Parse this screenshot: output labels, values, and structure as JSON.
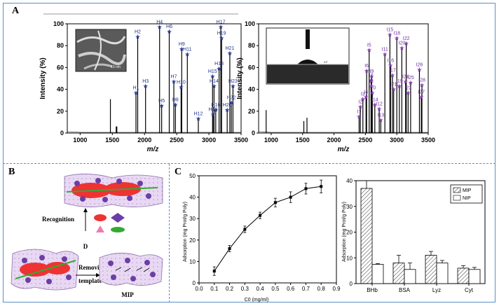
{
  "panels": {
    "a": "A",
    "b": "B",
    "c": "C"
  },
  "colors": {
    "border": "#5a8fc8",
    "bar_mip": "#ffffff",
    "bar_nip": "#ffffff",
    "star1": "#2a3c9a",
    "star2": "#8a3fb5"
  },
  "chart_data": [
    {
      "type": "bar",
      "title": "",
      "xlabel": "m/z",
      "ylabel": "Intensity (%)",
      "xlim": [
        800,
        3500
      ],
      "ylim": [
        0,
        100
      ],
      "xticks": [
        "1000",
        "1500",
        "2000",
        "2500",
        "3000",
        "3500"
      ],
      "yticks": [
        "0",
        "20",
        "40",
        "60",
        "80",
        "100"
      ],
      "inset_label": "10 nm",
      "peaks": [
        {
          "label": "H1",
          "x": 1867,
          "y": 37
        },
        {
          "label": "H2",
          "x": 1894,
          "y": 88
        },
        {
          "label": "H3",
          "x": 2016,
          "y": 43
        },
        {
          "label": "H4",
          "x": 2234,
          "y": 97
        },
        {
          "label": "H5",
          "x": 2266,
          "y": 25
        },
        {
          "label": "H6",
          "x": 2384,
          "y": 93
        },
        {
          "label": "H7",
          "x": 2455,
          "y": 47
        },
        {
          "label": "H8",
          "x": 2480,
          "y": 26
        },
        {
          "label": "H9",
          "x": 2578,
          "y": 77
        },
        {
          "label": "H10",
          "x": 2568,
          "y": 42
        },
        {
          "label": "H11",
          "x": 2665,
          "y": 72
        },
        {
          "label": "H12",
          "x": 2836,
          "y": 13
        },
        {
          "label": "H13",
          "x": 3064,
          "y": 17
        },
        {
          "label": "H14",
          "x": 3080,
          "y": 43
        },
        {
          "label": "H15",
          "x": 3057,
          "y": 52
        },
        {
          "label": "H16",
          "x": 3106,
          "y": 21
        },
        {
          "label": "H17",
          "x": 3185,
          "y": 97
        },
        {
          "label": "H18",
          "x": 3158,
          "y": 59
        },
        {
          "label": "H19",
          "x": 3197,
          "y": 87
        },
        {
          "label": "H20",
          "x": 3284,
          "y": 21
        },
        {
          "label": "H21",
          "x": 3325,
          "y": 73
        },
        {
          "label": "H22",
          "x": 3348,
          "y": 28
        },
        {
          "label": "H23",
          "x": 3374,
          "y": 43
        }
      ],
      "unlabeled_peaks": [
        {
          "x": 1470,
          "y": 31
        },
        {
          "x": 1570,
          "y": 6
        },
        {
          "x": 1560,
          "y": 6
        }
      ]
    },
    {
      "type": "bar",
      "title": "",
      "xlabel": "m/z",
      "ylabel": "Intensity (%)",
      "xlim": [
        800,
        3500
      ],
      "ylim": [
        0,
        100
      ],
      "xticks": [
        "1000",
        "1500",
        "2000",
        "2500",
        "3000",
        "3500"
      ],
      "yticks": [
        "0",
        "20",
        "40",
        "60",
        "80",
        "100"
      ],
      "inset_label": "93°",
      "peaks": [
        {
          "label": "I1",
          "x": 2400,
          "y": 15
        },
        {
          "label": "I2",
          "x": 2420,
          "y": 24
        },
        {
          "label": "I3",
          "x": 2460,
          "y": 31
        },
        {
          "label": "I4",
          "x": 2510,
          "y": 33
        },
        {
          "label": "I5",
          "x": 2560,
          "y": 76
        },
        {
          "label": "I6",
          "x": 2520,
          "y": 57
        },
        {
          "label": "I7",
          "x": 2590,
          "y": 48
        },
        {
          "label": "I8",
          "x": 2595,
          "y": 43
        },
        {
          "label": "I9",
          "x": 2600,
          "y": 52
        },
        {
          "label": "I10",
          "x": 2610,
          "y": 37
        },
        {
          "label": "I11",
          "x": 2810,
          "y": 72
        },
        {
          "label": "I12",
          "x": 2720,
          "y": 22
        },
        {
          "label": "I13",
          "x": 2745,
          "y": 12
        },
        {
          "label": "I14",
          "x": 2650,
          "y": 26
        },
        {
          "label": "I15",
          "x": 2890,
          "y": 90
        },
        {
          "label": "I16",
          "x": 2900,
          "y": 62
        },
        {
          "label": "I17",
          "x": 2930,
          "y": 53
        },
        {
          "label": "I18",
          "x": 3000,
          "y": 87
        },
        {
          "label": "I19",
          "x": 3040,
          "y": 43
        },
        {
          "label": "I20",
          "x": 3080,
          "y": 78
        },
        {
          "label": "I21",
          "x": 2950,
          "y": 40
        },
        {
          "label": "I22",
          "x": 3150,
          "y": 82
        },
        {
          "label": "I23",
          "x": 3180,
          "y": 37
        },
        {
          "label": "I24",
          "x": 3140,
          "y": 47
        },
        {
          "label": "I25",
          "x": 3220,
          "y": 46
        },
        {
          "label": "I26",
          "x": 3360,
          "y": 58
        },
        {
          "label": "I27",
          "x": 3390,
          "y": 33
        },
        {
          "label": "I28",
          "x": 3400,
          "y": 44
        }
      ],
      "unlabeled_peaks": [
        {
          "x": 920,
          "y": 21
        },
        {
          "x": 1520,
          "y": 11
        },
        {
          "x": 1570,
          "y": 14
        }
      ]
    },
    {
      "type": "line",
      "title": "",
      "xlabel": "C0 (mg/ml)",
      "ylabel": "Adsorption (mg Prot/g Poly)",
      "xlim": [
        0.0,
        0.9
      ],
      "ylim": [
        0,
        50
      ],
      "xticks": [
        "0.0",
        "0.1",
        "0.2",
        "0.3",
        "0.4",
        "0.5",
        "0.6",
        "0.7",
        "0.8",
        "0.9"
      ],
      "yticks": [
        "0",
        "10",
        "20",
        "30",
        "40",
        "50"
      ],
      "x": [
        0.1,
        0.2,
        0.3,
        0.4,
        0.5,
        0.6,
        0.7,
        0.8
      ],
      "y": [
        5.5,
        16,
        25,
        31.5,
        37.5,
        40,
        44,
        45
      ],
      "errors": [
        2,
        1.5,
        1.5,
        1.5,
        2,
        2.5,
        2.5,
        3
      ]
    },
    {
      "type": "bar",
      "title": "",
      "xlabel": "",
      "ylabel": "Adsorption (mg Prot/g Poly)",
      "ylim": [
        0,
        40
      ],
      "yticks": [
        "0",
        "10",
        "20",
        "30",
        "40"
      ],
      "categories": [
        "BHb",
        "BSA",
        "Lyz",
        "Cyt"
      ],
      "series": [
        {
          "name": "MIP",
          "values": [
            37,
            8,
            11,
            6
          ],
          "errors": [
            3,
            3,
            1.5,
            1
          ]
        },
        {
          "name": "NIP",
          "values": [
            7.5,
            5.5,
            8,
            5.5
          ],
          "errors": [
            0.3,
            2.5,
            1,
            0.8
          ]
        }
      ]
    }
  ],
  "schematic": {
    "recognition": "Recognition",
    "removing_line1": "Removing the",
    "removing_line2": "template",
    "mip": "MIP",
    "d_label": "D"
  }
}
